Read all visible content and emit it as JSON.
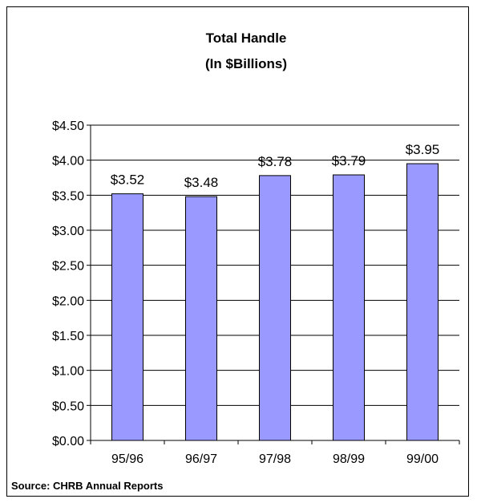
{
  "source": "Source:  CHRB Annual Reports",
  "colors": {
    "bar_fill": "#9999ff",
    "bar_stroke": "#000000",
    "grid": "#000000"
  },
  "chart_data": {
    "type": "bar",
    "title": "Total Handle",
    "subtitle": "(In $Billions)",
    "categories": [
      "95/96",
      "96/97",
      "97/98",
      "98/99",
      "99/00"
    ],
    "values": [
      3.52,
      3.48,
      3.78,
      3.79,
      3.95
    ],
    "value_labels": [
      "$3.52",
      "$3.48",
      "$3.78",
      "$3.79",
      "$3.95"
    ],
    "yticks": [
      "$0.00",
      "$0.50",
      "$1.00",
      "$1.50",
      "$2.00",
      "$2.50",
      "$3.00",
      "$3.50",
      "$4.00",
      "$4.50"
    ],
    "ylim": [
      0,
      4.5
    ],
    "grid": true,
    "legend": "none"
  }
}
